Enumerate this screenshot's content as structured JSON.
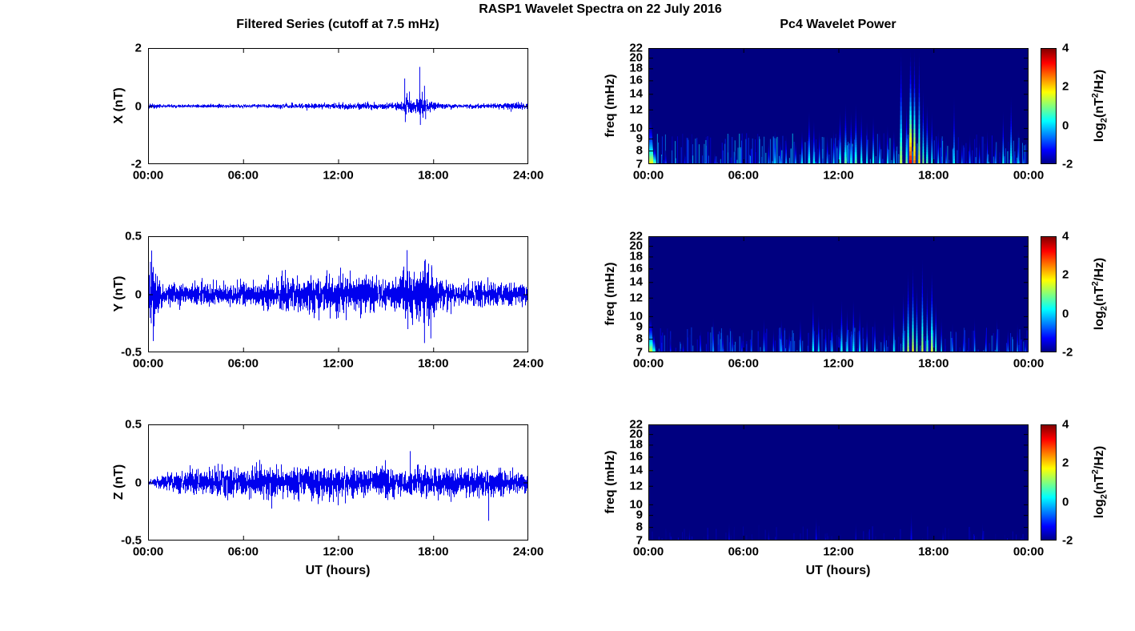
{
  "suptitle": "RASP1 Wavelet Spectra on 22 July 2016",
  "styles": {
    "line_color": "#0000EE",
    "spectrogram_background": "#000080",
    "axis_color": "#000000",
    "background": "#FFFFFF"
  },
  "chart_data": [
    {
      "id": "ts-x",
      "type": "line",
      "title": "Filtered Series (cutoff at 7.5 mHz)",
      "ylabel": "X (nT)",
      "ylim": [
        -2,
        2
      ],
      "yticks": [
        2,
        0,
        -2
      ],
      "yticklabels": [
        "2",
        "0",
        "-2"
      ],
      "xlim": [
        0,
        24
      ],
      "xticks": [
        0,
        6,
        12,
        18,
        24
      ],
      "xticklabels": [
        "00:00",
        "06:00",
        "12:00",
        "18:00",
        "24:00"
      ],
      "seed": 11,
      "envelope_format": "[t_hours, noise_sigma_nT]",
      "noise_envelope": [
        [
          0,
          0.03
        ],
        [
          0.2,
          0.06
        ],
        [
          0.5,
          0.035
        ],
        [
          1,
          0.025
        ],
        [
          3,
          0.025
        ],
        [
          5,
          0.028
        ],
        [
          7,
          0.03
        ],
        [
          8,
          0.04
        ],
        [
          9,
          0.035
        ],
        [
          10,
          0.045
        ],
        [
          11,
          0.04
        ],
        [
          12,
          0.05
        ],
        [
          12.5,
          0.055
        ],
        [
          13,
          0.045
        ],
        [
          14,
          0.055
        ],
        [
          15,
          0.045
        ],
        [
          15.5,
          0.055
        ],
        [
          16,
          0.08
        ],
        [
          16.3,
          0.15
        ],
        [
          16.6,
          0.1
        ],
        [
          17,
          0.12
        ],
        [
          17.3,
          0.22
        ],
        [
          17.6,
          0.13
        ],
        [
          18,
          0.08
        ],
        [
          18.5,
          0.05
        ],
        [
          19,
          0.035
        ],
        [
          20,
          0.035
        ],
        [
          21,
          0.04
        ],
        [
          22,
          0.04
        ],
        [
          22.7,
          0.06
        ],
        [
          23.2,
          0.065
        ],
        [
          23.6,
          0.05
        ],
        [
          24,
          0.035
        ]
      ],
      "spikes_format": "[t_hours, amplitude_nT]",
      "spikes": [
        [
          16.2,
          0.95
        ],
        [
          16.24,
          -0.55
        ],
        [
          16.5,
          0.5
        ],
        [
          17.15,
          1.35
        ],
        [
          17.19,
          -0.65
        ],
        [
          17.45,
          0.7
        ],
        [
          17.52,
          -0.45
        ]
      ]
    },
    {
      "id": "ts-y",
      "type": "line",
      "ylabel": "Y (nT)",
      "ylim": [
        -0.5,
        0.5
      ],
      "yticks": [
        0.5,
        0,
        -0.5
      ],
      "yticklabels": [
        "0.5",
        "0",
        "-0.5"
      ],
      "xlim": [
        0,
        24
      ],
      "xticks": [
        0,
        6,
        12,
        18,
        24
      ],
      "xticklabels": [
        "00:00",
        "06:00",
        "12:00",
        "18:00",
        "24:00"
      ],
      "seed": 22,
      "noise_envelope": [
        [
          0,
          0.1
        ],
        [
          0.3,
          0.13
        ],
        [
          0.6,
          0.07
        ],
        [
          1,
          0.045
        ],
        [
          2,
          0.04
        ],
        [
          4,
          0.045
        ],
        [
          6,
          0.05
        ],
        [
          8,
          0.06
        ],
        [
          9,
          0.065
        ],
        [
          10,
          0.07
        ],
        [
          10.5,
          0.08
        ],
        [
          11,
          0.065
        ],
        [
          12,
          0.08
        ],
        [
          12.5,
          0.09
        ],
        [
          13,
          0.075
        ],
        [
          14,
          0.07
        ],
        [
          15,
          0.06
        ],
        [
          15.5,
          0.065
        ],
        [
          16,
          0.08
        ],
        [
          16.3,
          0.12
        ],
        [
          16.6,
          0.1
        ],
        [
          17,
          0.09
        ],
        [
          17.4,
          0.13
        ],
        [
          17.8,
          0.12
        ],
        [
          18.1,
          0.09
        ],
        [
          18.5,
          0.06
        ],
        [
          19,
          0.05
        ],
        [
          20,
          0.045
        ],
        [
          21,
          0.05
        ],
        [
          22,
          0.045
        ],
        [
          23,
          0.05
        ],
        [
          24,
          0.04
        ]
      ],
      "spikes": [
        [
          0.15,
          0.28
        ],
        [
          0.2,
          -0.25
        ],
        [
          16.35,
          0.38
        ],
        [
          16.4,
          -0.3
        ],
        [
          17.45,
          -0.42
        ],
        [
          17.5,
          0.3
        ],
        [
          17.85,
          -0.38
        ],
        [
          17.9,
          0.25
        ]
      ]
    },
    {
      "id": "ts-z",
      "type": "line",
      "ylabel": "Z (nT)",
      "xlabel": "UT (hours)",
      "ylim": [
        -0.5,
        0.5
      ],
      "yticks": [
        0.5,
        0,
        -0.5
      ],
      "yticklabels": [
        "0.5",
        "0",
        "-0.5"
      ],
      "xlim": [
        0,
        24
      ],
      "xticks": [
        0,
        6,
        12,
        18,
        24
      ],
      "xticklabels": [
        "00:00",
        "06:00",
        "12:00",
        "18:00",
        "24:00"
      ],
      "seed": 33,
      "noise_envelope": [
        [
          0,
          0.01
        ],
        [
          0.5,
          0.02
        ],
        [
          1,
          0.03
        ],
        [
          1.5,
          0.04
        ],
        [
          2,
          0.05
        ],
        [
          3,
          0.055
        ],
        [
          4,
          0.06
        ],
        [
          6,
          0.06
        ],
        [
          8,
          0.062
        ],
        [
          10,
          0.06
        ],
        [
          12,
          0.062
        ],
        [
          14,
          0.06
        ],
        [
          16,
          0.06
        ],
        [
          18,
          0.058
        ],
        [
          20,
          0.055
        ],
        [
          21,
          0.05
        ],
        [
          22,
          0.048
        ],
        [
          23,
          0.045
        ],
        [
          24,
          0.042
        ]
      ],
      "spikes": [
        [
          16.55,
          0.27
        ],
        [
          21.5,
          -0.33
        ]
      ]
    },
    {
      "id": "spec-x",
      "type": "heatmap",
      "title": "Pc4 Wavelet Power",
      "ylabel": "freq (mHz)",
      "yscale": "log",
      "ylim": [
        7,
        22
      ],
      "yticks": [
        22,
        20,
        18,
        16,
        14,
        12,
        10,
        9,
        8,
        7
      ],
      "yticklabels": [
        "22",
        "20",
        "18",
        "16",
        "14",
        "12",
        "10",
        "9",
        "8",
        "7"
      ],
      "xlim": [
        0,
        24
      ],
      "xticks": [
        0,
        6,
        12,
        18,
        24
      ],
      "xticklabels": [
        "00:00",
        "06:00",
        "12:00",
        "18:00",
        "00:00"
      ],
      "clim": [
        -2,
        4
      ],
      "seed": 44,
      "colorbar": {
        "ticks": [
          4,
          2,
          0,
          -2
        ],
        "tick_labels": [
          "4",
          "2",
          "0",
          "-2"
        ],
        "label_parts": {
          "p1": "log",
          "sub": "2",
          "p2": "(nT",
          "sup": "2",
          "p3": "/Hz)"
        }
      },
      "bottom_noise": {
        "count": 260,
        "v": [
          -1.8,
          0.2
        ],
        "f": [
          7,
          9.5
        ]
      },
      "events_format": "[t_hours, width_hours, top_freq_mHz, log2_power]",
      "events": [
        [
          0.12,
          0.45,
          11,
          1.9
        ],
        [
          0.4,
          0.2,
          8.5,
          1.2
        ],
        [
          1.1,
          0.1,
          8,
          -0.6
        ],
        [
          2.3,
          0.08,
          8,
          -1
        ],
        [
          4.2,
          0.08,
          8,
          -0.9
        ],
        [
          5.5,
          0.08,
          8,
          -1
        ],
        [
          7.6,
          0.1,
          9,
          -0.4
        ],
        [
          8.0,
          0.12,
          10,
          0.1
        ],
        [
          8.35,
          0.1,
          9,
          -0.2
        ],
        [
          8.7,
          0.1,
          9.5,
          0
        ],
        [
          9.3,
          0.1,
          9,
          -0.1
        ],
        [
          9.7,
          0.12,
          10,
          0.2
        ],
        [
          10.15,
          0.14,
          12,
          0.6
        ],
        [
          10.45,
          0.12,
          11,
          0.4
        ],
        [
          10.8,
          0.1,
          10,
          0.1
        ],
        [
          11.3,
          0.1,
          9.5,
          0
        ],
        [
          11.7,
          0.1,
          10,
          0.2
        ],
        [
          12.1,
          0.14,
          12,
          0.7
        ],
        [
          12.45,
          0.14,
          13,
          1
        ],
        [
          12.8,
          0.12,
          12,
          0.6
        ],
        [
          13.1,
          0.14,
          13,
          0.9
        ],
        [
          13.45,
          0.12,
          12,
          0.6
        ],
        [
          13.8,
          0.1,
          11,
          0.4
        ],
        [
          14.2,
          0.12,
          11.5,
          0.6
        ],
        [
          14.6,
          0.1,
          10,
          0.3
        ],
        [
          15.1,
          0.1,
          10.5,
          0.4
        ],
        [
          15.5,
          0.1,
          10,
          0.2
        ],
        [
          15.95,
          0.16,
          22,
          1.4
        ],
        [
          16.3,
          0.12,
          13,
          1.1
        ],
        [
          16.55,
          0.18,
          22,
          3.4
        ],
        [
          16.8,
          0.14,
          22,
          2.6
        ],
        [
          17.1,
          0.12,
          22,
          1.8
        ],
        [
          17.35,
          0.1,
          15,
          1.1
        ],
        [
          17.6,
          0.12,
          13,
          0.8
        ],
        [
          17.9,
          0.1,
          12,
          0.6
        ],
        [
          18.3,
          0.1,
          10,
          0.1
        ],
        [
          18.8,
          0.08,
          9,
          -0.3
        ],
        [
          19.3,
          0.1,
          14,
          0.3
        ],
        [
          19.8,
          0.08,
          9,
          -0.4
        ],
        [
          20.3,
          0.08,
          9.5,
          -0.2
        ],
        [
          20.9,
          0.08,
          9,
          -0.4
        ],
        [
          21.4,
          0.08,
          10,
          -0.1
        ],
        [
          21.9,
          0.08,
          9,
          -0.3
        ],
        [
          22.4,
          0.1,
          12,
          0.4
        ],
        [
          22.9,
          0.12,
          14,
          0.7
        ],
        [
          23.35,
          0.1,
          10,
          0.1
        ],
        [
          23.7,
          0.08,
          8.5,
          -0.5
        ]
      ]
    },
    {
      "id": "spec-y",
      "type": "heatmap",
      "ylabel": "freq (mHz)",
      "yscale": "log",
      "ylim": [
        7,
        22
      ],
      "yticks": [
        22,
        20,
        18,
        16,
        14,
        12,
        10,
        9,
        8,
        7
      ],
      "yticklabels": [
        "22",
        "20",
        "18",
        "16",
        "14",
        "12",
        "10",
        "9",
        "8",
        "7"
      ],
      "xlim": [
        0,
        24
      ],
      "xticks": [
        0,
        6,
        12,
        18,
        24
      ],
      "xticklabels": [
        "00:00",
        "06:00",
        "12:00",
        "18:00",
        "00:00"
      ],
      "clim": [
        -2,
        4
      ],
      "seed": 55,
      "colorbar": {
        "ticks": [
          4,
          2,
          0,
          -2
        ],
        "tick_labels": [
          "4",
          "2",
          "0",
          "-2"
        ],
        "label_parts": {
          "p1": "log",
          "sub": "2",
          "p2": "(nT",
          "sup": "2",
          "p3": "/Hz)"
        }
      },
      "bottom_noise": {
        "count": 200,
        "v": [
          -1.8,
          -0.3
        ],
        "f": [
          7,
          9
        ]
      },
      "events": [
        [
          0.12,
          0.4,
          10,
          1.7
        ],
        [
          0.35,
          0.2,
          8.5,
          0.9
        ],
        [
          1.4,
          0.08,
          8,
          -0.7
        ],
        [
          2.2,
          0.08,
          8,
          -1
        ],
        [
          3.3,
          0.08,
          9,
          -0.5
        ],
        [
          4.1,
          0.1,
          10,
          -0.2
        ],
        [
          4.7,
          0.08,
          9,
          -0.5
        ],
        [
          5.3,
          0.08,
          9,
          -0.4
        ],
        [
          5.9,
          0.08,
          8.5,
          -0.7
        ],
        [
          6.5,
          0.08,
          9,
          -0.5
        ],
        [
          7.3,
          0.1,
          10,
          -0.2
        ],
        [
          7.9,
          0.08,
          9,
          -0.5
        ],
        [
          8.4,
          0.1,
          10,
          -0.1
        ],
        [
          8.9,
          0.08,
          9,
          -0.4
        ],
        [
          9.6,
          0.1,
          10,
          0
        ],
        [
          10.4,
          0.12,
          12,
          0.5
        ],
        [
          10.75,
          0.1,
          10.5,
          0.3
        ],
        [
          11.2,
          0.08,
          9.5,
          -0.1
        ],
        [
          11.6,
          0.1,
          10,
          0.1
        ],
        [
          12.2,
          0.12,
          12,
          0.6
        ],
        [
          12.55,
          0.1,
          11,
          0.4
        ],
        [
          12.95,
          0.12,
          12,
          0.5
        ],
        [
          13.35,
          0.1,
          11,
          0.3
        ],
        [
          13.8,
          0.08,
          10,
          0.1
        ],
        [
          14.3,
          0.1,
          10,
          0.1
        ],
        [
          14.9,
          0.08,
          9.5,
          -0.1
        ],
        [
          15.5,
          0.1,
          11.5,
          0.5
        ],
        [
          16.1,
          0.1,
          13,
          0.9
        ],
        [
          16.4,
          0.12,
          16,
          1.4
        ],
        [
          16.7,
          0.12,
          17,
          1.7
        ],
        [
          16.95,
          0.1,
          14,
          1.1
        ],
        [
          17.3,
          0.12,
          18,
          1.5
        ],
        [
          17.6,
          0.1,
          14,
          1
        ],
        [
          17.9,
          0.14,
          16,
          1.6
        ],
        [
          18.15,
          0.1,
          12,
          0.8
        ],
        [
          18.5,
          0.08,
          10,
          0.3
        ],
        [
          19.2,
          0.08,
          9.5,
          -0.2
        ],
        [
          19.9,
          0.08,
          9,
          -0.4
        ],
        [
          20.6,
          0.08,
          10,
          -0.1
        ],
        [
          21.3,
          0.08,
          9,
          -0.3
        ],
        [
          22,
          0.08,
          10,
          -0.1
        ],
        [
          22.7,
          0.08,
          9,
          -0.3
        ],
        [
          23.3,
          0.08,
          9.5,
          -0.2
        ],
        [
          23.8,
          0.08,
          8.5,
          -0.6
        ]
      ]
    },
    {
      "id": "spec-z",
      "type": "heatmap",
      "ylabel": "freq (mHz)",
      "xlabel": "UT (hours)",
      "yscale": "log",
      "ylim": [
        7,
        22
      ],
      "yticks": [
        22,
        20,
        18,
        16,
        14,
        12,
        10,
        9,
        8,
        7
      ],
      "yticklabels": [
        "22",
        "20",
        "18",
        "16",
        "14",
        "12",
        "10",
        "9",
        "8",
        "7"
      ],
      "xlim": [
        0,
        24
      ],
      "xticks": [
        0,
        6,
        12,
        18,
        24
      ],
      "xticklabels": [
        "00:00",
        "06:00",
        "12:00",
        "18:00",
        "00:00"
      ],
      "clim": [
        -2,
        4
      ],
      "seed": 66,
      "colorbar": {
        "ticks": [
          4,
          2,
          0,
          -2
        ],
        "tick_labels": [
          "4",
          "2",
          "0",
          "-2"
        ],
        "label_parts": {
          "p1": "log",
          "sub": "2",
          "p2": "(nT",
          "sup": "2",
          "p3": "/Hz)"
        }
      },
      "bottom_noise": {
        "count": 70,
        "v": [
          -1.9,
          -1.4
        ],
        "f": [
          7,
          8.2
        ]
      },
      "events": [
        [
          2.6,
          0.08,
          8,
          -1.5
        ],
        [
          5.1,
          0.08,
          8.5,
          -1.4
        ],
        [
          7.6,
          0.08,
          8,
          -1.5
        ],
        [
          10.6,
          0.1,
          9,
          -1.3
        ],
        [
          13.1,
          0.08,
          8.5,
          -1.45
        ],
        [
          16.6,
          0.1,
          9.5,
          -1.25
        ],
        [
          18.6,
          0.08,
          8,
          -1.5
        ],
        [
          21.1,
          0.08,
          8.5,
          -1.45
        ]
      ]
    }
  ]
}
